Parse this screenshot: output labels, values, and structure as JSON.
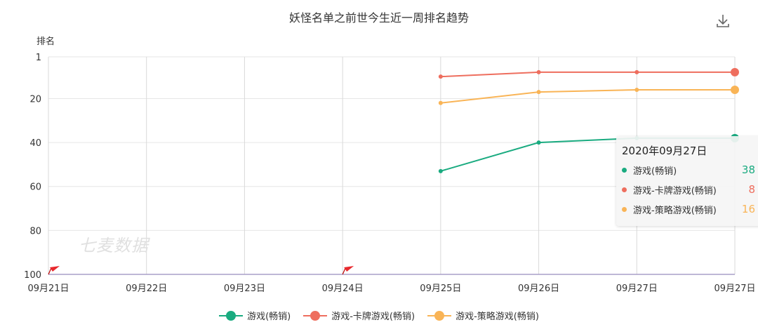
{
  "chart_data": {
    "type": "line",
    "title": "妖怪名单之前世今生近一周排名趋势",
    "ylabel": "排名",
    "y_inverted": true,
    "ylim": [
      1,
      100
    ],
    "y_ticks": [
      "1",
      "20",
      "40",
      "60",
      "80",
      "100"
    ],
    "categories": [
      "09月21日",
      "09月22日",
      "09月23日",
      "09月24日",
      "09月25日",
      "09月26日",
      "09月27日",
      "09月27日"
    ],
    "series": [
      {
        "name": "游戏(畅销)",
        "color": "#1aab80",
        "values": [
          null,
          null,
          null,
          null,
          53,
          40,
          38,
          38
        ]
      },
      {
        "name": "游戏-卡牌游戏(畅销)",
        "color": "#ee6e5e",
        "values": [
          null,
          null,
          null,
          null,
          10,
          8,
          8,
          8
        ]
      },
      {
        "name": "游戏-策略游戏(畅销)",
        "color": "#f9b456",
        "values": [
          null,
          null,
          null,
          null,
          22,
          17,
          16,
          16
        ]
      }
    ],
    "flags_at": [
      "09月21日",
      "09月24日"
    ],
    "legend_position": "bottom",
    "grid": true
  },
  "watermark": "七麦数据",
  "download_icon": "download-icon",
  "tooltip": {
    "date": "2020年09月27日",
    "rows": [
      {
        "name": "游戏(畅销)",
        "value": "38",
        "color": "#1aab80"
      },
      {
        "name": "游戏-卡牌游戏(畅销)",
        "value": "8",
        "color": "#ee6e5e"
      },
      {
        "name": "游戏-策略游戏(畅销)",
        "value": "16",
        "color": "#f9b456"
      }
    ]
  }
}
